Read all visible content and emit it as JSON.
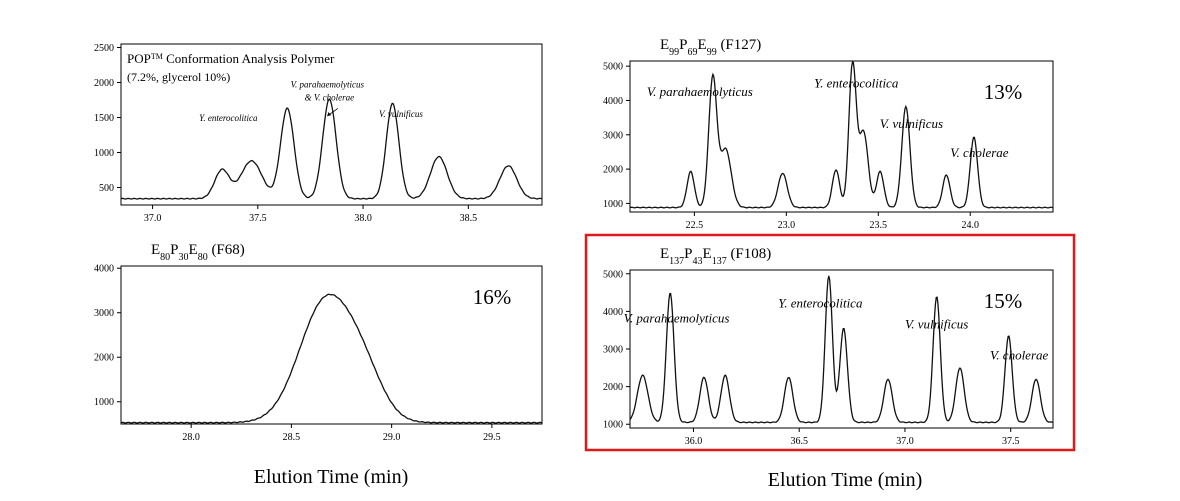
{
  "figure": {
    "xlabel_left": "Elution Time (min)",
    "xlabel_right": "Elution Time (min)",
    "highlight_color": "#e0191b"
  },
  "chart_data": [
    {
      "type": "line",
      "id": "pop",
      "title": "POP",
      "title_sup": "TM",
      "title_rest": " Conformation Analysis Polymer",
      "subtitle": "(7.2%, glycerol 10%)",
      "percent": "",
      "xlim": [
        36.85,
        38.85
      ],
      "ylim": [
        250,
        2550
      ],
      "xticks": [
        37.0,
        37.5,
        38.0,
        38.5
      ],
      "xtick_labels": [
        "37.0",
        "37.5",
        "38.0",
        "38.5"
      ],
      "yticks": [
        500,
        1000,
        1500,
        2000,
        2500
      ],
      "ytick_labels": [
        "500",
        "1000",
        "1500",
        "2000",
        "2500"
      ],
      "baseline": 340,
      "peaks": [
        {
          "x": 37.33,
          "y": 410,
          "w": 0.035
        },
        {
          "x": 37.47,
          "y": 540,
          "w": 0.05
        },
        {
          "x": 37.64,
          "y": 1290,
          "w": 0.032
        },
        {
          "x": 37.84,
          "y": 1420,
          "w": 0.032
        },
        {
          "x": 38.14,
          "y": 1360,
          "w": 0.03
        },
        {
          "x": 38.36,
          "y": 600,
          "w": 0.04
        },
        {
          "x": 38.69,
          "y": 470,
          "w": 0.04
        }
      ],
      "labels": [
        {
          "text": "Y. enterocolitica",
          "x": 37.36,
          "y": 1450
        },
        {
          "text": "V. parahaemolyticus",
          "x": 37.83,
          "y": 1930
        },
        {
          "text": "& V. cholerae",
          "x": 37.84,
          "y": 1740
        },
        {
          "text": "V. vulnificus",
          "x": 38.18,
          "y": 1510
        }
      ]
    },
    {
      "type": "line",
      "id": "f127",
      "title": "E",
      "title_sub1": "99",
      "title_p": "P",
      "title_sub2": "69",
      "title_e": "E",
      "title_sub3": "99",
      "title_tail": " (F127)",
      "percent": "13%",
      "xlim": [
        22.15,
        24.45
      ],
      "ylim": [
        750,
        5150
      ],
      "xticks": [
        22.5,
        23.0,
        23.5,
        24.0
      ],
      "xtick_labels": [
        "22.5",
        "23.0",
        "23.5",
        "24.0"
      ],
      "yticks": [
        1000,
        2000,
        3000,
        4000,
        5000
      ],
      "ytick_labels": [
        "1000",
        "2000",
        "3000",
        "4000",
        "5000"
      ],
      "baseline": 880,
      "peaks": [
        {
          "x": 22.48,
          "y": 1050,
          "w": 0.02
        },
        {
          "x": 22.6,
          "y": 3760,
          "w": 0.022
        },
        {
          "x": 22.67,
          "y": 1700,
          "w": 0.03
        },
        {
          "x": 22.98,
          "y": 1000,
          "w": 0.025
        },
        {
          "x": 23.27,
          "y": 1100,
          "w": 0.02
        },
        {
          "x": 23.36,
          "y": 4150,
          "w": 0.02
        },
        {
          "x": 23.42,
          "y": 2200,
          "w": 0.025
        },
        {
          "x": 23.51,
          "y": 1050,
          "w": 0.02
        },
        {
          "x": 23.65,
          "y": 2950,
          "w": 0.022
        },
        {
          "x": 23.87,
          "y": 950,
          "w": 0.02
        },
        {
          "x": 24.02,
          "y": 2050,
          "w": 0.02
        }
      ],
      "labels": [
        {
          "text": "V. parahaemolyticus",
          "x": 22.53,
          "y": 4130
        },
        {
          "text": "Y. enterocolitica",
          "x": 23.38,
          "y": 4380
        },
        {
          "text": "V. vulnificus",
          "x": 23.68,
          "y": 3200
        },
        {
          "text": "V. cholerae",
          "x": 24.05,
          "y": 2350
        }
      ]
    },
    {
      "type": "line",
      "id": "f68",
      "title": "E",
      "title_sub1": "80",
      "title_p": "P",
      "title_sub2": "30",
      "title_e": "E",
      "title_sub3": "80",
      "title_tail": " (F68)",
      "percent": "16%",
      "xlim": [
        27.65,
        29.75
      ],
      "ylim": [
        500,
        4050
      ],
      "xticks": [
        28.0,
        28.5,
        29.0,
        29.5
      ],
      "xtick_labels": [
        "28.0",
        "28.5",
        "29.0",
        "29.5"
      ],
      "yticks": [
        1000,
        2000,
        3000,
        4000
      ],
      "ytick_labels": [
        "1000",
        "2000",
        "3000",
        "4000"
      ],
      "baseline": 530,
      "peaks": [
        {
          "x": 28.67,
          "y": 2700,
          "w": 0.13
        },
        {
          "x": 28.86,
          "y": 900,
          "w": 0.1
        }
      ],
      "labels": []
    },
    {
      "type": "line",
      "id": "f108",
      "title": "E",
      "title_sub1": "137",
      "title_p": "P",
      "title_sub2": "43",
      "title_e": "E",
      "title_sub3": "137",
      "title_tail": " (F108)",
      "percent": "15%",
      "xlim": [
        35.7,
        37.7
      ],
      "ylim": [
        900,
        5100
      ],
      "xticks": [
        36.0,
        36.5,
        37.0,
        37.5
      ],
      "xtick_labels": [
        "36.0",
        "36.5",
        "37.0",
        "37.5"
      ],
      "yticks": [
        1000,
        2000,
        3000,
        4000,
        5000
      ],
      "ytick_labels": [
        "1000",
        "2000",
        "3000",
        "4000",
        "5000"
      ],
      "baseline": 1050,
      "peaks": [
        {
          "x": 35.76,
          "y": 1250,
          "w": 0.025
        },
        {
          "x": 35.89,
          "y": 3450,
          "w": 0.018
        },
        {
          "x": 36.05,
          "y": 1200,
          "w": 0.02
        },
        {
          "x": 36.15,
          "y": 1250,
          "w": 0.02
        },
        {
          "x": 36.45,
          "y": 1200,
          "w": 0.02
        },
        {
          "x": 36.64,
          "y": 3900,
          "w": 0.017
        },
        {
          "x": 36.71,
          "y": 2500,
          "w": 0.018
        },
        {
          "x": 36.92,
          "y": 1150,
          "w": 0.02
        },
        {
          "x": 37.15,
          "y": 3350,
          "w": 0.017
        },
        {
          "x": 37.26,
          "y": 1450,
          "w": 0.02
        },
        {
          "x": 37.49,
          "y": 2300,
          "w": 0.017
        },
        {
          "x": 37.62,
          "y": 1150,
          "w": 0.02
        }
      ],
      "labels": [
        {
          "text": "V. parahaemolyticus",
          "x": 35.92,
          "y": 3700
        },
        {
          "text": "Y. enterocolitica",
          "x": 36.6,
          "y": 4100
        },
        {
          "text": "V. vulnificus",
          "x": 37.15,
          "y": 3550
        },
        {
          "text": "V. cholerae",
          "x": 37.54,
          "y": 2720
        }
      ]
    }
  ]
}
